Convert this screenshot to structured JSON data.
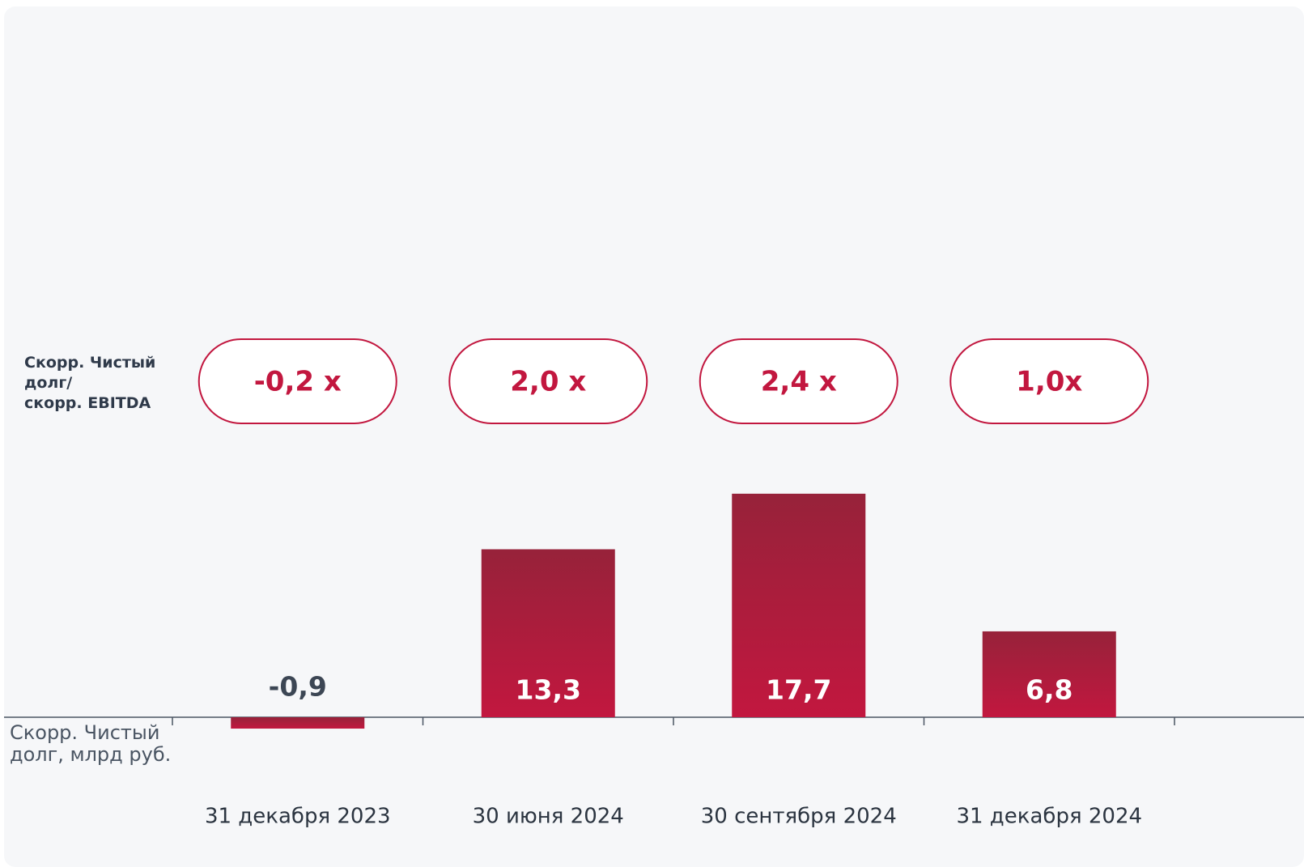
{
  "chart_data": {
    "type": "bar",
    "categories": [
      "31 декабря 2023",
      "30 июня 2024",
      "30 сентября 2024",
      "31 декабря 2024"
    ],
    "values": [
      -0.9,
      13.3,
      17.7,
      6.8
    ],
    "value_labels": [
      "-0,9",
      "13,3",
      "17,7",
      "6,8"
    ],
    "ratio_labels": [
      "-0,2 x",
      "2,0 x",
      "2,4 x",
      "1,0x"
    ],
    "ratio_label": "Скорр. Чистый\nдолг/\nскорр. EBITDA",
    "y_label": "Скорр. Чистый\nдолг, млрд руб.",
    "colors": [
      "#97223a",
      "#c2173f"
    ]
  }
}
